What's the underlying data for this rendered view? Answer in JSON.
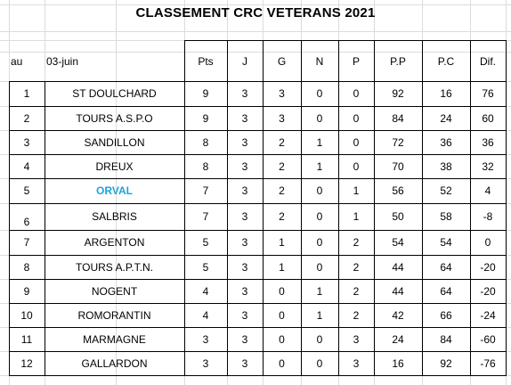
{
  "title": "CLASSEMENT CRC VETERANS 2021",
  "header": {
    "rank_label": "au",
    "date_label": "03-juin",
    "columns": [
      "Pts",
      "J",
      "G",
      "N",
      "P",
      "P.P",
      "P.C",
      "Dif."
    ]
  },
  "highlight_color": "#1ea3dc",
  "rows": [
    {
      "rank": "1",
      "team": "ST DOULCHARD",
      "pts": "9",
      "j": "3",
      "g": "3",
      "n": "0",
      "p": "0",
      "pp": "92",
      "pc": "16",
      "dif": "76"
    },
    {
      "rank": "2",
      "team": "TOURS A.S.P.O",
      "pts": "9",
      "j": "3",
      "g": "3",
      "n": "0",
      "p": "0",
      "pp": "84",
      "pc": "24",
      "dif": "60"
    },
    {
      "rank": "3",
      "team": "SANDILLON",
      "pts": "8",
      "j": "3",
      "g": "2",
      "n": "1",
      "p": "0",
      "pp": "72",
      "pc": "36",
      "dif": "36"
    },
    {
      "rank": "4",
      "team": "DREUX",
      "pts": "8",
      "j": "3",
      "g": "2",
      "n": "1",
      "p": "0",
      "pp": "70",
      "pc": "38",
      "dif": "32"
    },
    {
      "rank": "5",
      "team": "ORVAL",
      "pts": "7",
      "j": "3",
      "g": "2",
      "n": "0",
      "p": "1",
      "pp": "56",
      "pc": "52",
      "dif": "4",
      "highlight": true
    },
    {
      "rank": "6",
      "team": "SALBRIS",
      "pts": "7",
      "j": "3",
      "g": "2",
      "n": "0",
      "p": "1",
      "pp": "50",
      "pc": "58",
      "dif": "-8"
    },
    {
      "rank": "7",
      "team": "ARGENTON",
      "pts": "5",
      "j": "3",
      "g": "1",
      "n": "0",
      "p": "2",
      "pp": "54",
      "pc": "54",
      "dif": "0"
    },
    {
      "rank": "8",
      "team": "TOURS A.P.T.N.",
      "pts": "5",
      "j": "3",
      "g": "1",
      "n": "0",
      "p": "2",
      "pp": "44",
      "pc": "64",
      "dif": "-20"
    },
    {
      "rank": "9",
      "team": "NOGENT",
      "pts": "4",
      "j": "3",
      "g": "0",
      "n": "1",
      "p": "2",
      "pp": "44",
      "pc": "64",
      "dif": "-20"
    },
    {
      "rank": "10",
      "team": "ROMORANTIN",
      "pts": "4",
      "j": "3",
      "g": "0",
      "n": "1",
      "p": "2",
      "pp": "42",
      "pc": "66",
      "dif": "-24"
    },
    {
      "rank": "11",
      "team": "MARMAGNE",
      "pts": "3",
      "j": "3",
      "g": "0",
      "n": "0",
      "p": "3",
      "pp": "24",
      "pc": "84",
      "dif": "-60"
    },
    {
      "rank": "12",
      "team": "GALLARDON",
      "pts": "3",
      "j": "3",
      "g": "0",
      "n": "0",
      "p": "3",
      "pp": "16",
      "pc": "92",
      "dif": "-76"
    }
  ]
}
